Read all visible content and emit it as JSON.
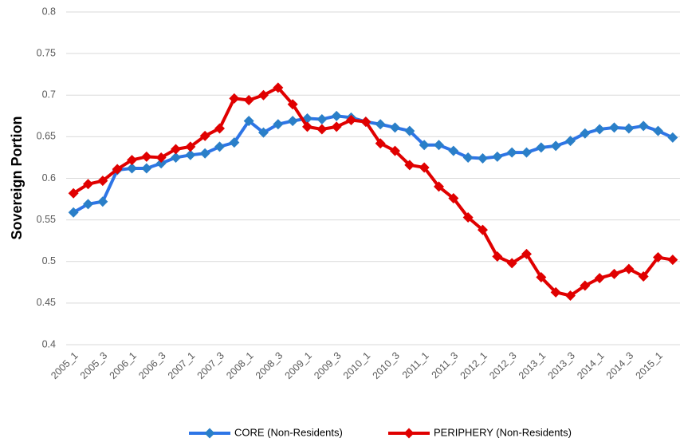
{
  "chart_data": {
    "type": "line",
    "y_label": "Sovereign Portion",
    "categories": [
      "2005_1",
      null,
      "2005_3",
      null,
      "2006_1",
      null,
      "2006_3",
      null,
      "2007_1",
      null,
      "2007_3",
      null,
      "2008_1",
      null,
      "2008_3",
      null,
      "2009_1",
      null,
      "2009_3",
      null,
      "2010_1",
      null,
      "2010_3",
      null,
      "2011_1",
      null,
      "2011_3",
      null,
      "2012_1",
      null,
      "2012_3",
      null,
      "2013_1",
      null,
      "2013_3",
      null,
      "2014_1",
      null,
      "2014_3",
      null,
      "2015_1",
      null
    ],
    "series": [
      {
        "name": "CORE (Non-Residents)",
        "color": "#2e75e6",
        "marker_color": "#2a7fc8",
        "values": [
          0.559,
          0.569,
          0.572,
          0.61,
          0.612,
          0.612,
          0.618,
          0.625,
          0.628,
          0.63,
          0.638,
          0.643,
          0.669,
          0.655,
          0.665,
          0.669,
          0.672,
          0.671,
          0.675,
          0.673,
          0.668,
          0.665,
          0.661,
          0.657,
          0.64,
          0.64,
          0.633,
          0.625,
          0.624,
          0.626,
          0.631,
          0.631,
          0.637,
          0.639,
          0.645,
          0.654,
          0.659,
          0.661,
          0.66,
          0.663,
          0.657,
          0.649
        ]
      },
      {
        "name": "PERIPHERY (Non-Residents)",
        "color": "#e00000",
        "marker_color": "#e00000",
        "values": [
          0.582,
          0.593,
          0.597,
          0.611,
          0.622,
          0.626,
          0.625,
          0.635,
          0.638,
          0.651,
          0.66,
          0.696,
          0.694,
          0.7,
          0.709,
          0.689,
          0.662,
          0.659,
          0.662,
          0.67,
          0.668,
          0.642,
          0.633,
          0.616,
          0.613,
          0.59,
          0.576,
          0.553,
          0.538,
          0.506,
          0.498,
          0.509,
          0.481,
          0.463,
          0.459,
          0.471,
          0.48,
          0.485,
          0.491,
          0.482,
          0.505,
          0.502
        ]
      }
    ],
    "ylim": [
      0.4,
      0.8
    ],
    "yticks": [
      0.4,
      0.45,
      0.5,
      0.55,
      0.6,
      0.65,
      0.7,
      0.75,
      0.8
    ],
    "grid": true,
    "legend": "bottom"
  }
}
